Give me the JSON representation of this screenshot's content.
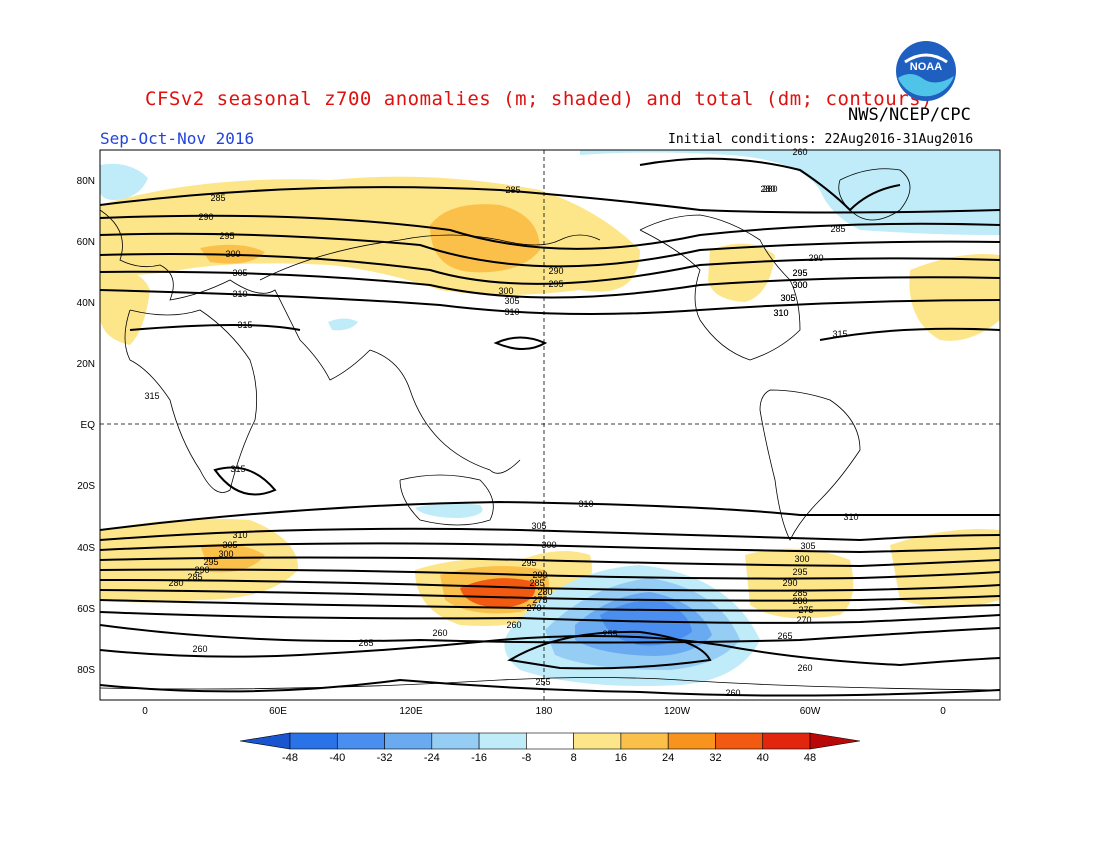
{
  "header": {
    "title": "CFSv2 seasonal z700 anomalies (m; shaded) and total (dm; contours)",
    "agency": "NWS/NCEP/CPC",
    "season": "Sep-Oct-Nov 2016",
    "initial_conditions": "Initial conditions: 22Aug2016-31Aug2016",
    "logo_text": "NOAA",
    "title_color": "#e01010",
    "season_color": "#2244dd"
  },
  "axes": {
    "lat_labels": [
      "80N",
      "60N",
      "40N",
      "20N",
      "EQ",
      "20S",
      "40S",
      "60S",
      "80S"
    ],
    "lon_labels": [
      "0",
      "60E",
      "120E",
      "180",
      "120W",
      "60W",
      "0"
    ]
  },
  "colorbar": {
    "ticks": [
      "-48",
      "-40",
      "-32",
      "-24",
      "-16",
      "-8",
      "8",
      "16",
      "24",
      "32",
      "40",
      "48"
    ],
    "colors": [
      "#1a55d0",
      "#2a72e8",
      "#4a8ff0",
      "#6aaaf0",
      "#96cdf5",
      "#bfecf8",
      "#ffffff",
      "#fde68a",
      "#fbc04a",
      "#f8941e",
      "#f25a12",
      "#e2260e",
      "#b80808"
    ]
  },
  "contour_labels": {
    "nh": [
      "285",
      "290",
      "295",
      "300",
      "305",
      "310",
      "315",
      "280",
      "285",
      "290",
      "295",
      "300",
      "305",
      "310",
      "315",
      "260",
      "280",
      "285",
      "290",
      "295",
      "300",
      "305",
      "310",
      "295",
      "300",
      "305",
      "310"
    ],
    "sh": [
      "315",
      "315",
      "310",
      "310",
      "310",
      "305",
      "300",
      "295",
      "290",
      "285",
      "280",
      "305",
      "300",
      "295",
      "290",
      "285",
      "280",
      "275",
      "270",
      "305",
      "300",
      "295",
      "290",
      "285",
      "280",
      "275",
      "270",
      "265",
      "260",
      "260",
      "260",
      "265",
      "255",
      "255",
      "260",
      "260"
    ]
  }
}
